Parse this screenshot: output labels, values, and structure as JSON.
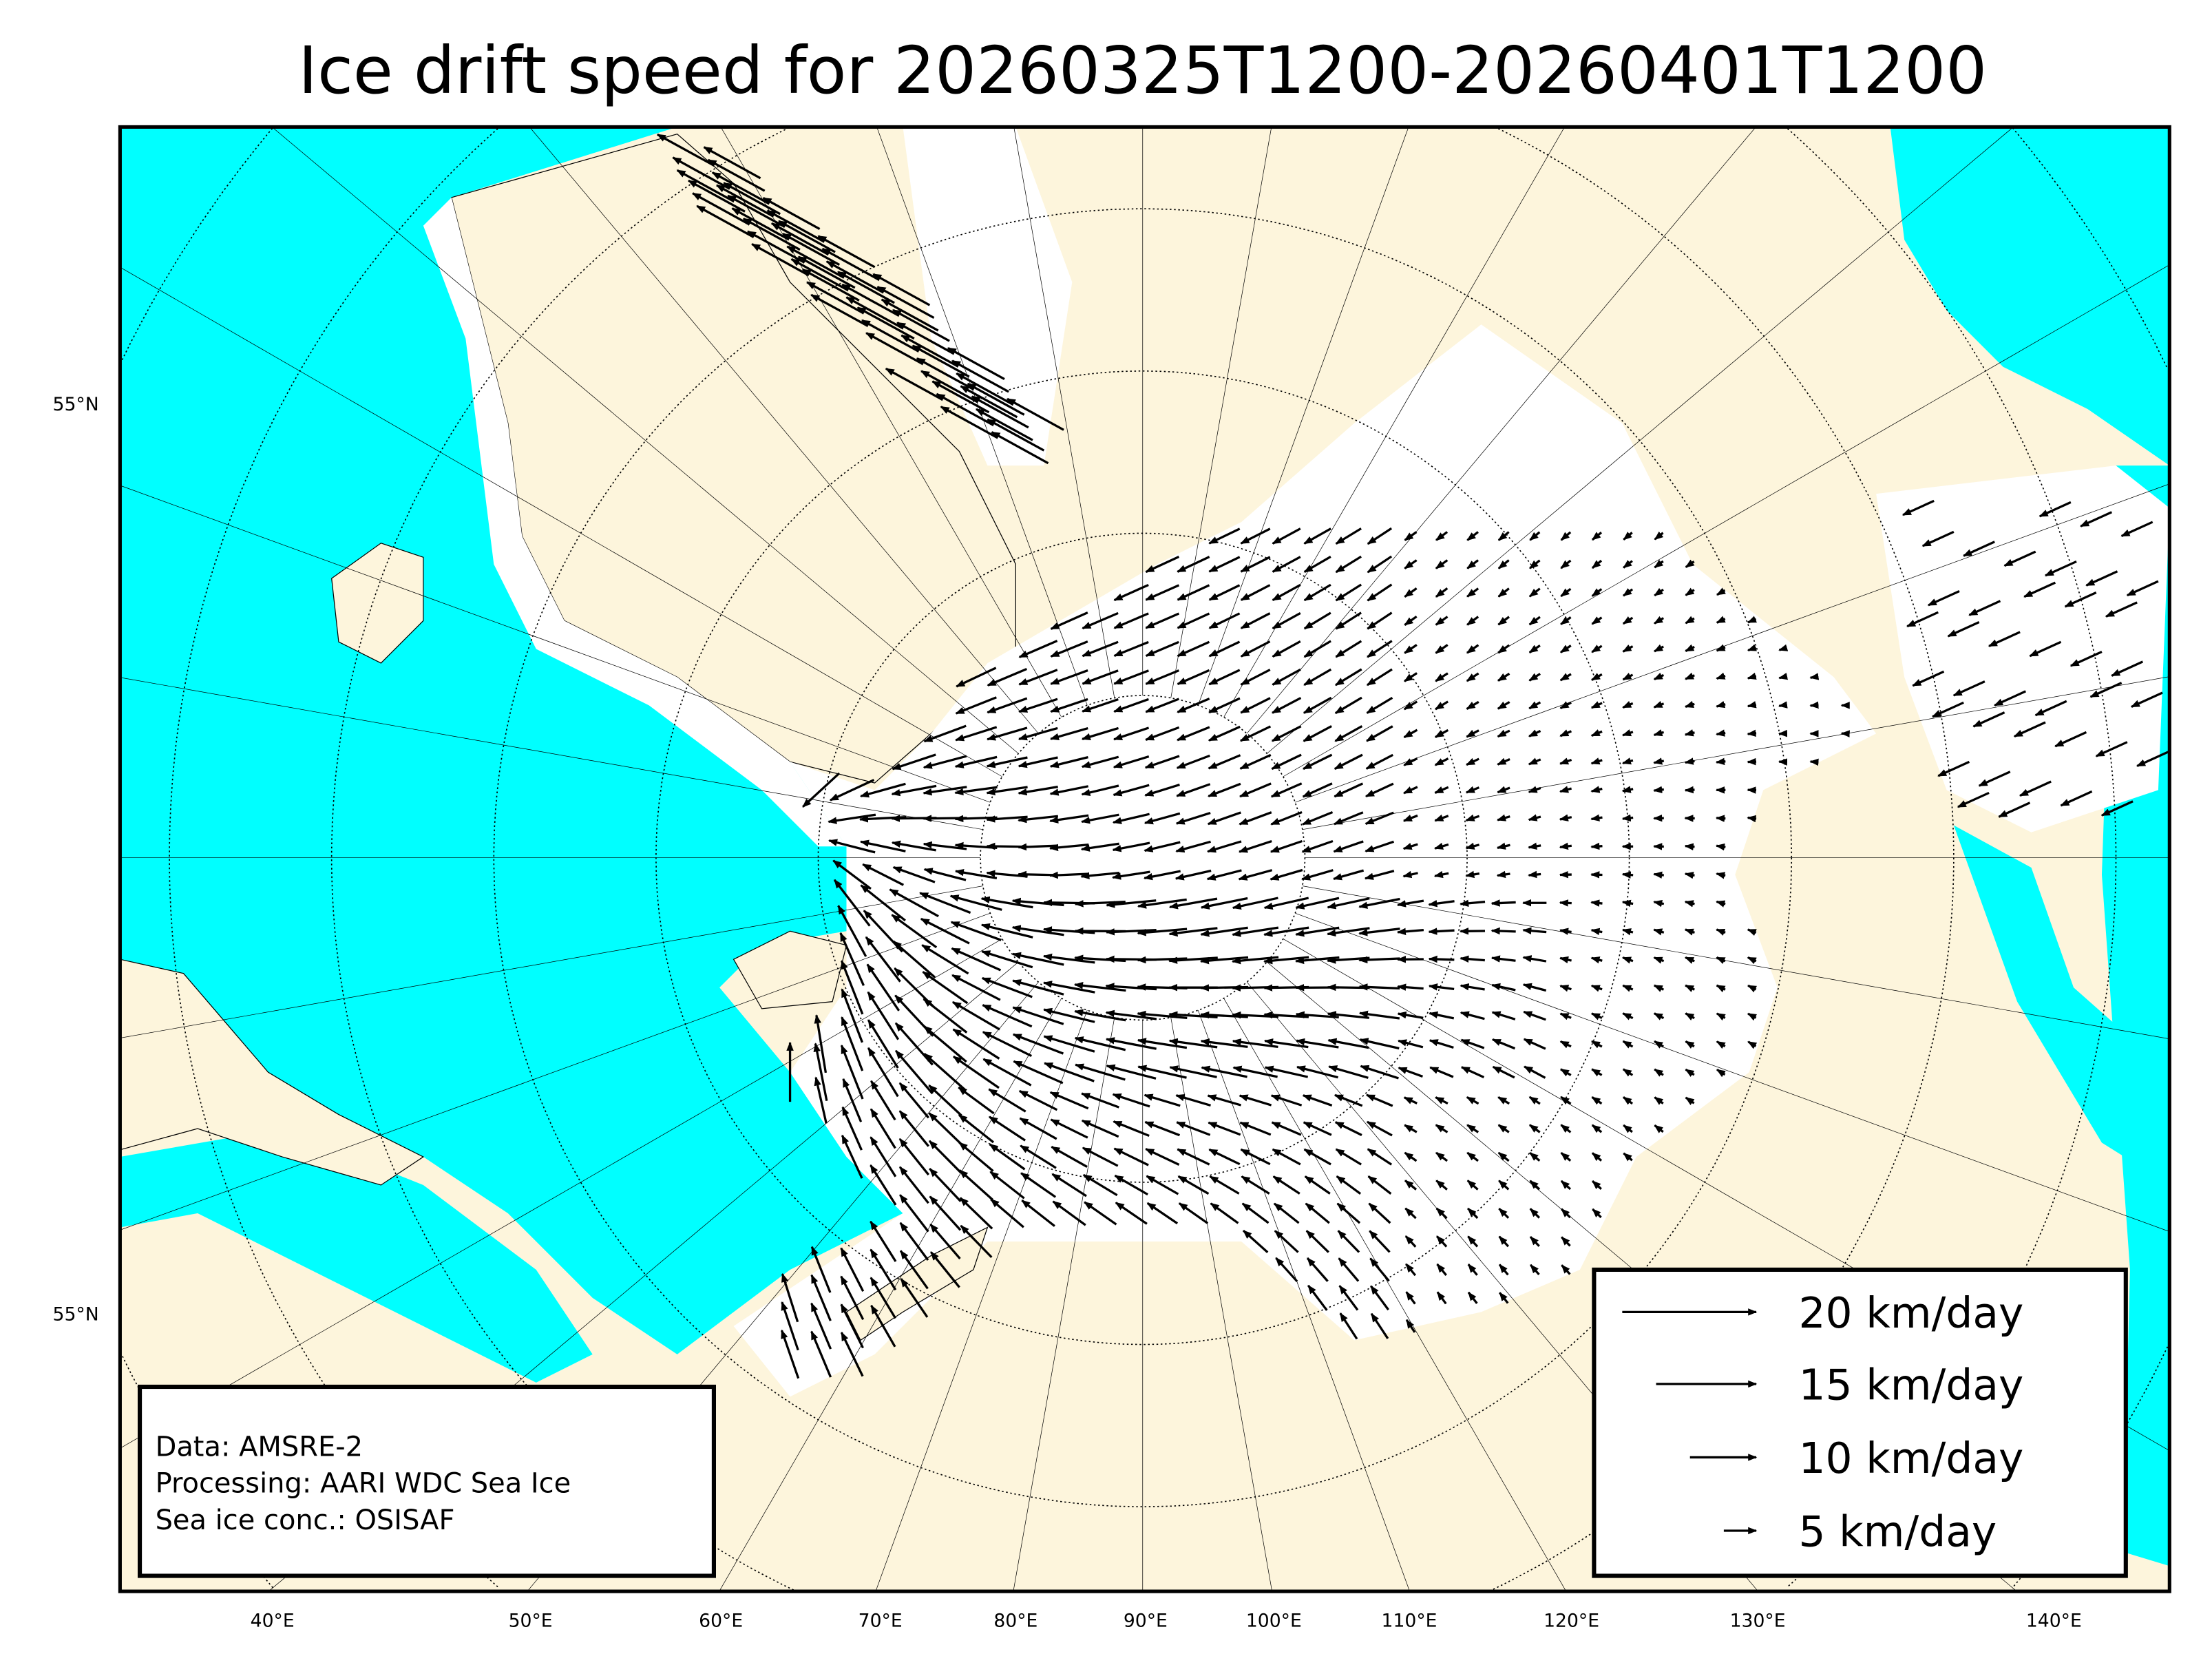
{
  "title": "Ice drift speed for 20260325T1200-20260401T1200",
  "colors": {
    "ocean": "#00ffff",
    "land": "#fdf5dc",
    "ice": "#ffffff",
    "arrows": "#000000"
  },
  "latitude_labels": [
    "55°N",
    "55°N"
  ],
  "longitude_labels": [
    "40°E",
    "50°E",
    "60°E",
    "70°E",
    "80°E",
    "90°E",
    "100°E",
    "110°E",
    "120°E",
    "130°E",
    "140°E"
  ],
  "info_box": {
    "lines": [
      "Data: AMSRE-2",
      "Processing: AARI WDC Sea Ice",
      "Sea ice conc.: OSISAF"
    ]
  },
  "legend": {
    "entries": [
      {
        "label": "20 km/day",
        "speed_km_day": 20
      },
      {
        "label": "15 km/day",
        "speed_km_day": 15
      },
      {
        "label": "10 km/day",
        "speed_km_day": 10
      },
      {
        "label": "5 km/day",
        "speed_km_day": 5
      }
    ]
  },
  "map": {
    "projection": "north polar stereographic",
    "graticule": "dotted latitude circles, meridians every 10°",
    "layer": "sea ice drift vectors"
  }
}
